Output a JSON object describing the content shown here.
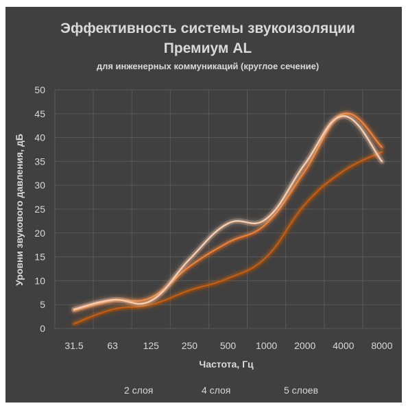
{
  "chart_data": {
    "type": "line",
    "title": "Эффективность системы звукоизоляции",
    "title_line2": "Премиум AL",
    "subtitle": "для инженерных коммуникаций (круглое сечение)",
    "xlabel": "Частота, Гц",
    "ylabel": "Уровни звукового давления, дБ",
    "categories": [
      "31.5",
      "63",
      "125",
      "250",
      "500",
      "1000",
      "2000",
      "4000",
      "8000"
    ],
    "ylim": [
      0,
      50
    ],
    "yticks": [
      "0",
      "5",
      "10",
      "15",
      "20",
      "25",
      "30",
      "35",
      "40",
      "45",
      "50"
    ],
    "grid": true,
    "legend_position": "bottom",
    "series": [
      {
        "name": "2 слоя",
        "color": "#c55a11",
        "values": [
          1,
          4,
          5,
          8,
          10.5,
          15,
          26,
          33,
          37
        ]
      },
      {
        "name": "4 слоя",
        "color": "#ed7d31",
        "values": [
          3.8,
          5.8,
          6.5,
          13,
          18,
          22,
          33,
          45,
          38
        ]
      },
      {
        "name": "5 слоев",
        "color": "#f8cbad",
        "values": [
          4,
          6,
          5.8,
          14.5,
          22,
          23,
          34.5,
          44.5,
          35
        ]
      }
    ]
  }
}
